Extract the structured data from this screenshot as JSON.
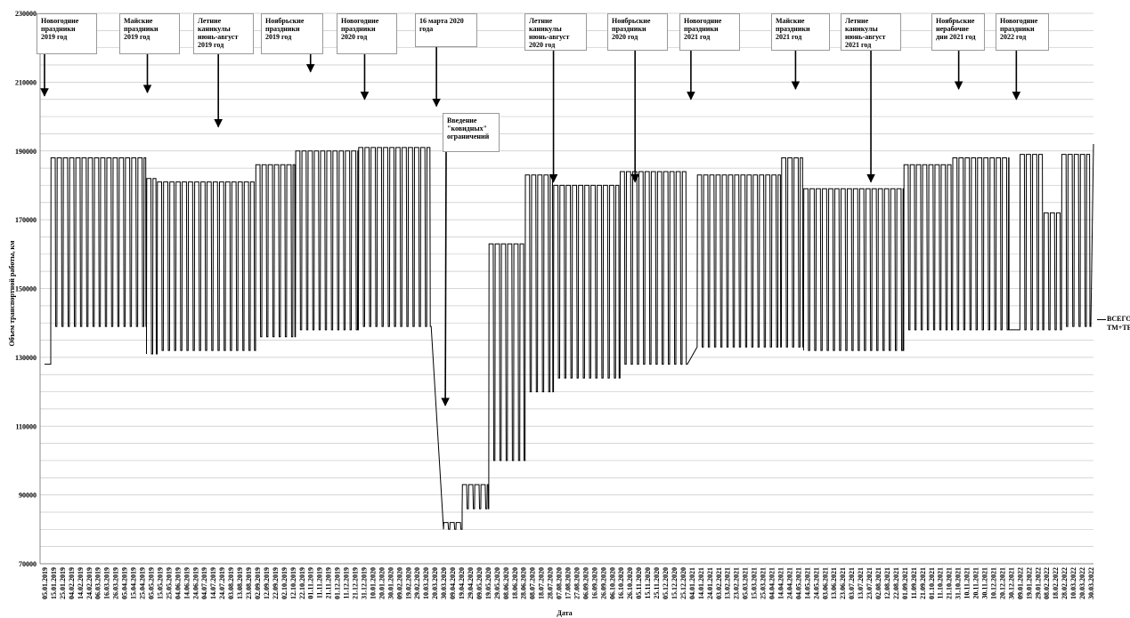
{
  "chart_data": {
    "type": "line",
    "ylabel": "Объем транспортной работы, км",
    "xlabel": "Дата",
    "ylim": [
      70000,
      230000
    ],
    "y_ticks": [
      70000,
      90000,
      110000,
      130000,
      150000,
      170000,
      190000,
      210000,
      230000
    ],
    "x_tick_labels": [
      "05.01.2019",
      "15.01.2019",
      "25.01.2019",
      "04.02.2019",
      "14.02.2019",
      "24.02.2019",
      "06.03.2019",
      "16.03.2019",
      "26.03.2019",
      "05.04.2019",
      "15.04.2019",
      "25.04.2019",
      "05.05.2019",
      "15.05.2019",
      "25.05.2019",
      "04.06.2019",
      "14.06.2019",
      "24.06.2019",
      "04.07.2019",
      "14.07.2019",
      "24.07.2019",
      "03.08.2019",
      "13.08.2019",
      "23.08.2019",
      "02.09.2019",
      "12.09.2019",
      "22.09.2019",
      "02.10.2019",
      "12.10.2019",
      "22.10.2019",
      "01.11.2019",
      "11.11.2019",
      "21.11.2019",
      "01.12.2019",
      "11.12.2019",
      "21.12.2019",
      "31.12.2019",
      "10.01.2020",
      "20.01.2020",
      "30.01.2020",
      "09.02.2020",
      "19.02.2020",
      "29.02.2020",
      "10.03.2020",
      "20.03.2020",
      "30.03.2020",
      "09.04.2020",
      "19.04.2020",
      "29.04.2020",
      "09.05.2020",
      "19.05.2020",
      "29.05.2020",
      "08.06.2020",
      "18.06.2020",
      "28.06.2020",
      "08.07.2020",
      "18.07.2020",
      "28.07.2020",
      "07.08.2020",
      "17.08.2020",
      "27.08.2020",
      "06.09.2020",
      "16.09.2020",
      "26.09.2020",
      "06.10.2020",
      "16.10.2020",
      "26.10.2020",
      "05.11.2020",
      "15.11.2020",
      "25.11.2020",
      "05.12.2020",
      "15.12.2020",
      "25.12.2020",
      "04.01.2021",
      "14.01.2021",
      "24.01.2021",
      "03.02.2021",
      "13.02.2021",
      "23.02.2021",
      "05.03.2021",
      "15.03.2021",
      "25.03.2021",
      "04.04.2021",
      "14.04.2021",
      "24.04.2021",
      "04.05.2021",
      "14.05.2021",
      "24.05.2021",
      "03.06.2021",
      "13.06.2021",
      "23.06.2021",
      "03.07.2021",
      "13.07.2021",
      "23.07.2021",
      "02.08.2021",
      "12.08.2021",
      "22.08.2021",
      "01.09.2021",
      "11.09.2021",
      "21.09.2021",
      "01.10.2021",
      "11.10.2021",
      "21.10.2021",
      "31.10.2021",
      "10.11.2021",
      "20.11.2021",
      "30.11.2021",
      "10.12.2021",
      "20.12.2021",
      "30.12.2021",
      "09.01.2022",
      "19.01.2022",
      "29.01.2022",
      "08.02.2022",
      "18.02.2022",
      "28.02.2022",
      "10.03.2022",
      "20.03.2022",
      "30.03.2022"
    ],
    "series": [
      {
        "name": "ВСЕГО ТМ+ТБ",
        "x_start": "2019-01-05",
        "weekly_period_days": 7,
        "segments": [
          {
            "from": "2019-01-05",
            "to": "2019-01-12",
            "peak": 128000,
            "low": 128000
          },
          {
            "from": "2019-01-12",
            "to": "2019-04-30",
            "peak": 188000,
            "low": 139000
          },
          {
            "from": "2019-04-30",
            "to": "2019-05-12",
            "peak": 182000,
            "low": 131000
          },
          {
            "from": "2019-05-12",
            "to": "2019-08-31",
            "peak": 181000,
            "low": 132000
          },
          {
            "from": "2019-08-31",
            "to": "2019-10-15",
            "peak": 186000,
            "low": 136000
          },
          {
            "from": "2019-10-15",
            "to": "2019-12-25",
            "peak": 190000,
            "low": 138000
          },
          {
            "from": "2019-12-25",
            "to": "2020-03-16",
            "peak": 191000,
            "low": 139000
          },
          {
            "from": "2020-03-30",
            "to": "2020-04-20",
            "peak": 82000,
            "low": 80000
          },
          {
            "from": "2020-04-20",
            "to": "2020-05-20",
            "peak": 93000,
            "low": 86000
          },
          {
            "from": "2020-05-20",
            "to": "2020-06-30",
            "peak": 163000,
            "low": 100000
          },
          {
            "from": "2020-06-30",
            "to": "2020-08-01",
            "peak": 183000,
            "low": 120000
          },
          {
            "from": "2020-08-01",
            "to": "2020-10-15",
            "peak": 180000,
            "low": 124000
          },
          {
            "from": "2020-10-15",
            "to": "2020-12-30",
            "peak": 184000,
            "low": 128000
          },
          {
            "from": "2021-01-10",
            "to": "2021-04-15",
            "peak": 183000,
            "low": 133000
          },
          {
            "from": "2021-04-15",
            "to": "2021-05-10",
            "peak": 188000,
            "low": 133000
          },
          {
            "from": "2021-05-10",
            "to": "2021-08-31",
            "peak": 179000,
            "low": 132000
          },
          {
            "from": "2021-08-31",
            "to": "2021-10-25",
            "peak": 186000,
            "low": 138000
          },
          {
            "from": "2021-10-25",
            "to": "2021-12-28",
            "peak": 188000,
            "low": 138000
          },
          {
            "from": "2022-01-09",
            "to": "2022-02-05",
            "peak": 189000,
            "low": 138000
          },
          {
            "from": "2022-02-05",
            "to": "2022-02-25",
            "peak": 172000,
            "low": 138000
          },
          {
            "from": "2022-02-25",
            "to": "2022-03-30",
            "peak": 189000,
            "low": 139000
          }
        ],
        "end_value": 192000
      }
    ],
    "annotations": [
      {
        "text": "Новогодние\nпраздники\n2019 год",
        "date": "2019-01-05",
        "value": 206000
      },
      {
        "text": "Майские\nпраздники\n2019 год",
        "date": "2019-05-01",
        "value": 207000
      },
      {
        "text": "Летние\nканикулы\nиюнь-август\n2019 год",
        "date": "2019-07-20",
        "value": 197000
      },
      {
        "text": "Ноябрьские\nпраздники\n2019 год",
        "date": "2019-11-01",
        "value": 213000
      },
      {
        "text": "Новогодние\nпраздники\n2020 год",
        "date": "2020-01-01",
        "value": 205000
      },
      {
        "text": "16 марта 2020\nгода",
        "date": "2020-03-22",
        "value": 203000
      },
      {
        "text": "Введение\n\"ковидных\"\nограничений",
        "date": "2020-04-01",
        "value": 116000
      },
      {
        "text": "Летние\nканикулы\nиюнь-август\n2020 год",
        "date": "2020-08-01",
        "value": 181000
      },
      {
        "text": "Ноябрьские\nпраздники\n2020 год",
        "date": "2020-11-01",
        "value": 181000
      },
      {
        "text": "Новогодние\nпраздники\n2021 год",
        "date": "2021-01-03",
        "value": 205000
      },
      {
        "text": "Майские\nпраздники\n2021 год",
        "date": "2021-05-01",
        "value": 208000
      },
      {
        "text": "Летние\nканикулы\nиюнь-август\n2021 год",
        "date": "2021-07-25",
        "value": 181000
      },
      {
        "text": "Ноябрьские\nнерабочие\nдни 2021 год",
        "date": "2021-11-01",
        "value": 208000
      },
      {
        "text": "Новогодние\nпраздники\n2022 год",
        "date": "2022-01-05",
        "value": 205000
      }
    ],
    "legend_position": "right",
    "grid": "horizontal"
  }
}
